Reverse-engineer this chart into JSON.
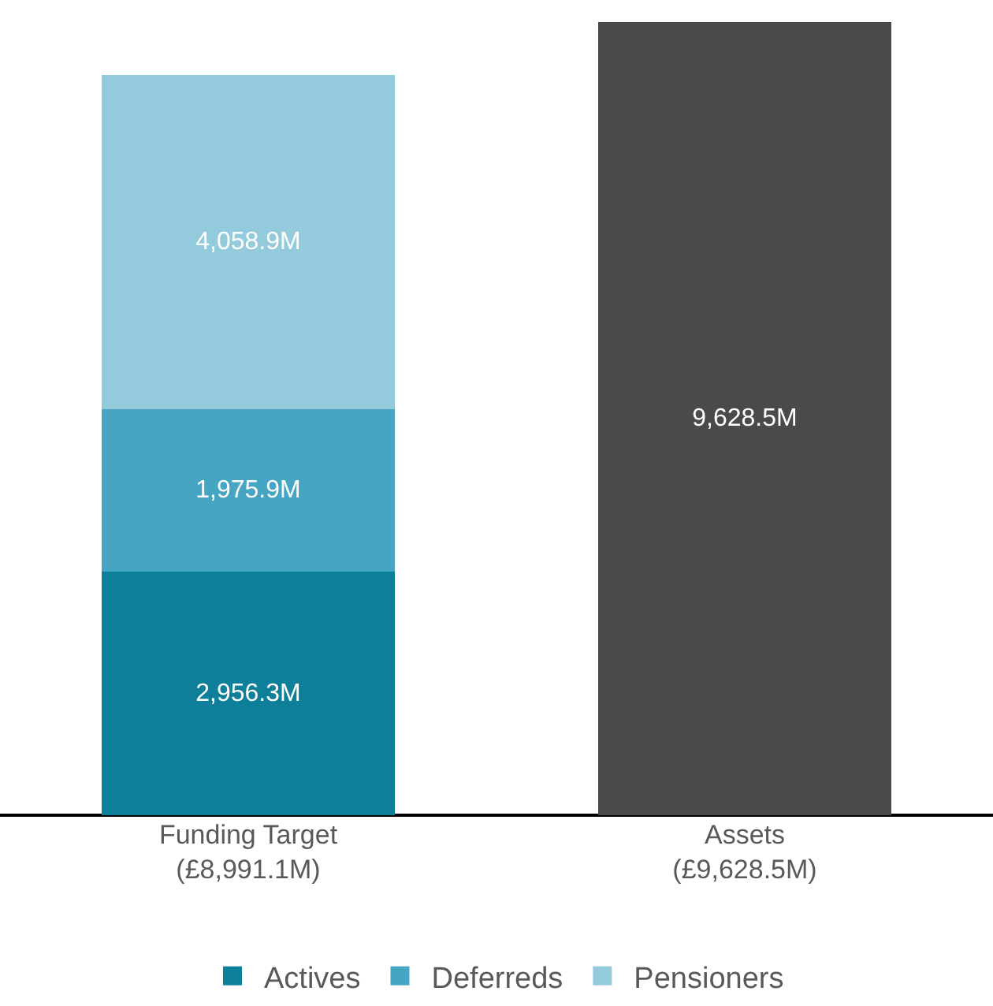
{
  "chart_data": {
    "type": "bar",
    "stacked": true,
    "categories": [
      "Funding Target\n(£8,991.1M)",
      "Assets\n(£9,628.5M)"
    ],
    "ylim": [
      0,
      9900
    ],
    "tick_labels": "x",
    "legend": "bottom",
    "series": [
      {
        "name": "Actives",
        "color": "#0e7f99",
        "values": [
          2956.3,
          null
        ],
        "value_labels": [
          "2,956.3M",
          null
        ]
      },
      {
        "name": "Deferreds",
        "color": "#45a5c2",
        "values": [
          1975.9,
          null
        ],
        "value_labels": [
          "1,975.9M",
          null
        ]
      },
      {
        "name": "Pensioners",
        "color": "#94cbdc",
        "values": [
          4058.9,
          null
        ],
        "value_labels": [
          "4,058.9M",
          null
        ]
      },
      {
        "color": "#4a4a4d",
        "values": [
          null,
          9628.5
        ],
        "value_labels": [
          null,
          "9,628.5M"
        ]
      }
    ]
  }
}
